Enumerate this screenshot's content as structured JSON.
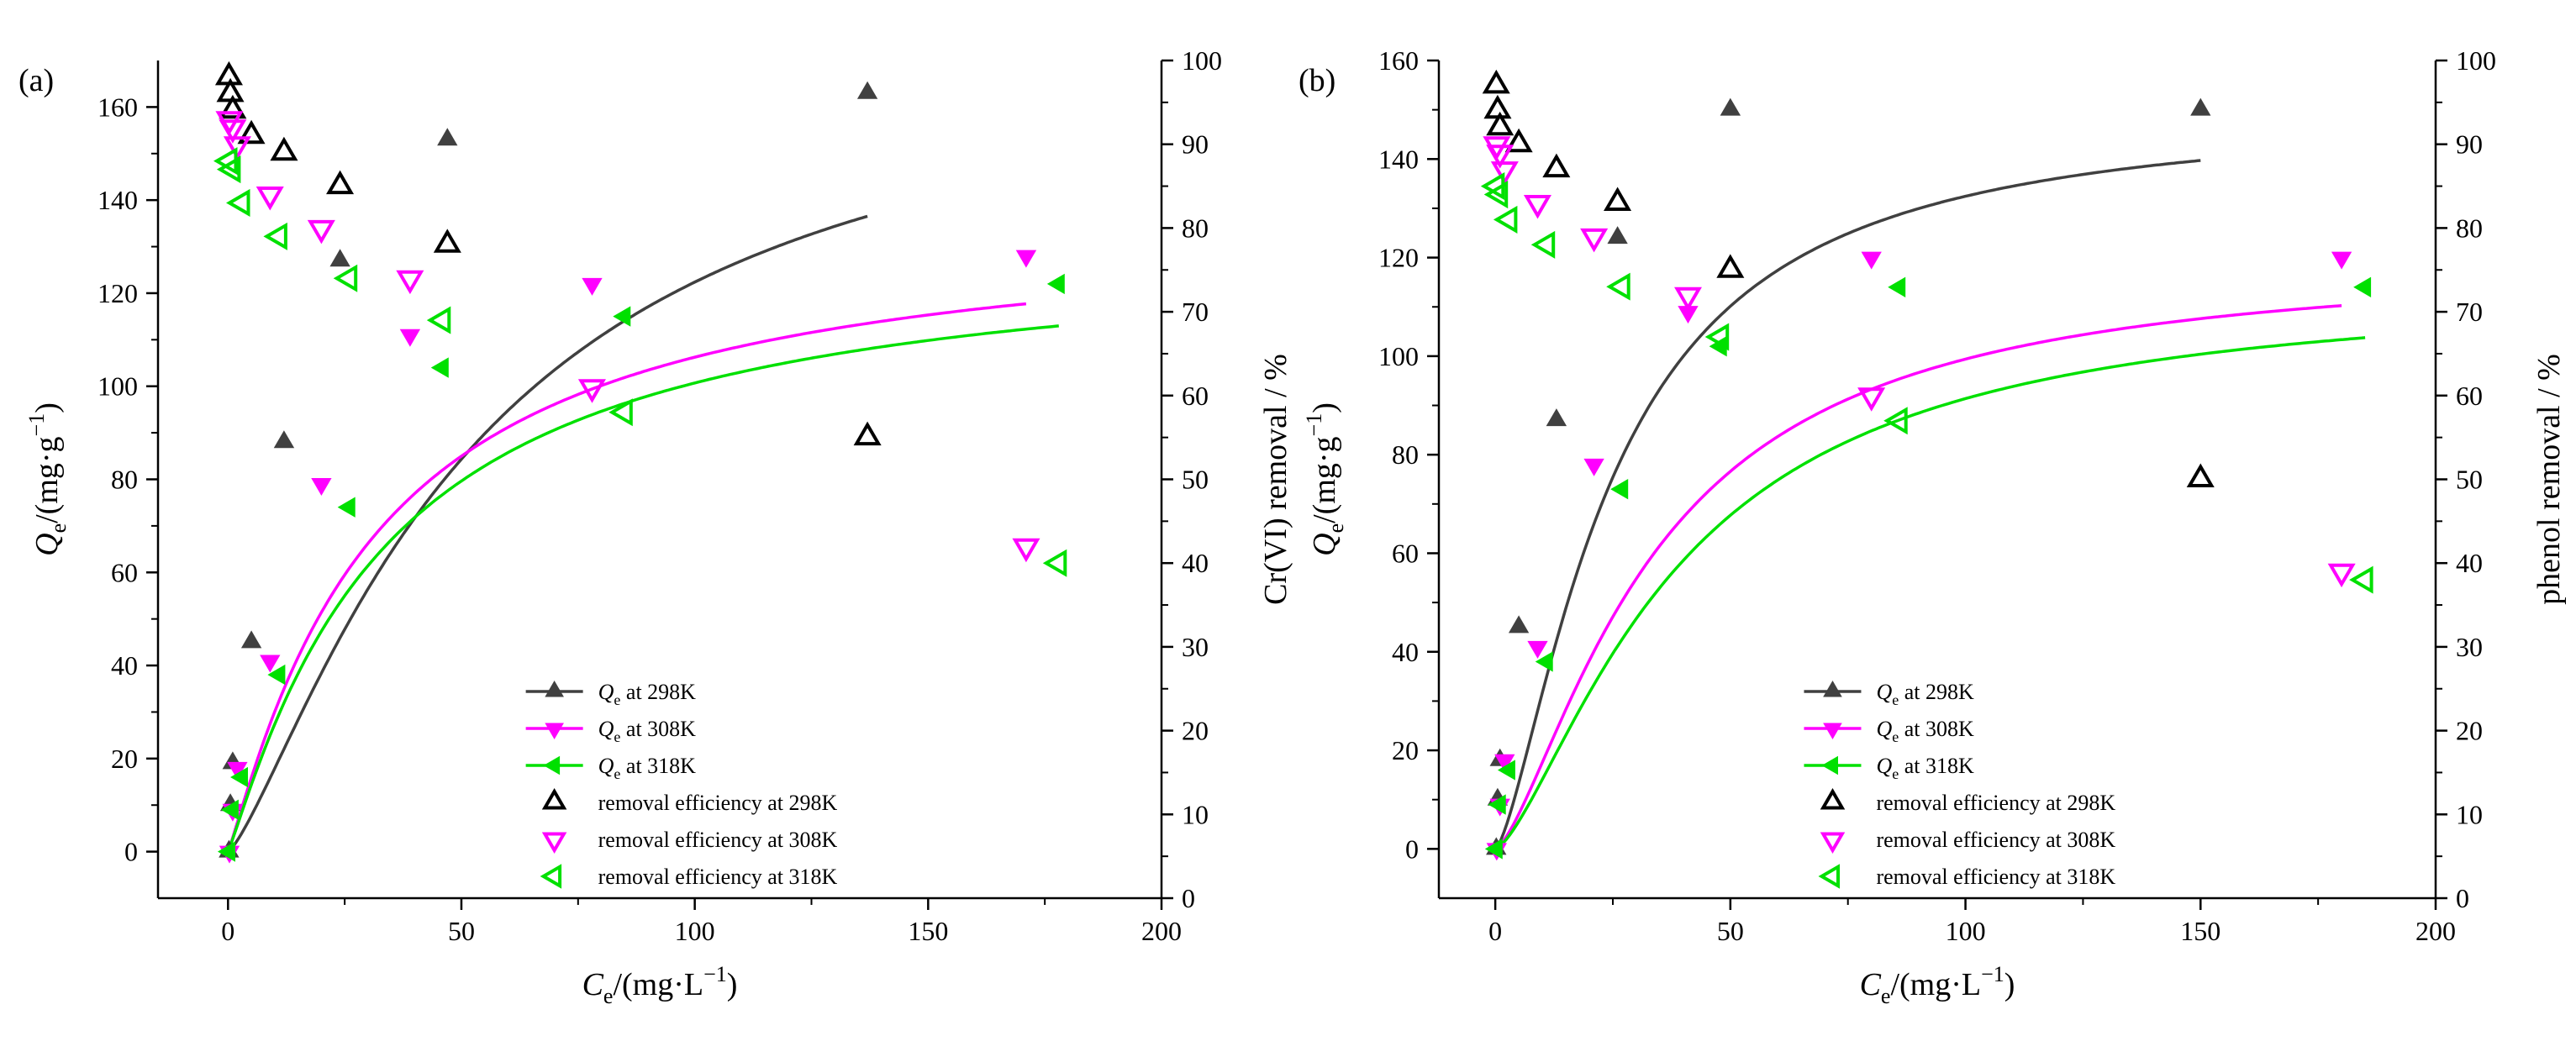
{
  "chart_data": [
    {
      "panel_label": "(a)",
      "type": "scatter",
      "xlabel": {
        "main": "C",
        "sub": "e",
        "unit_pre": "/(mg·L",
        "sup": "−1",
        "unit_post": ")"
      },
      "ylabel_left": {
        "main": "Q",
        "sub": "e",
        "unit_pre": "/(mg·g",
        "sup": "−1",
        "unit_post": ")"
      },
      "ylabel_right": "Cr(VI) removal / %",
      "xlim": [
        -15,
        200
      ],
      "ylim_left": [
        -10,
        170
      ],
      "ylim_right": [
        0,
        100
      ],
      "xticks": [
        0,
        50,
        100,
        150,
        200
      ],
      "yticks_left": [
        0,
        20,
        40,
        60,
        80,
        100,
        120,
        140,
        160
      ],
      "yticks_right": [
        0,
        10,
        20,
        30,
        40,
        50,
        60,
        70,
        80,
        90,
        100
      ],
      "legend_position": "bottom-center",
      "series": [
        {
          "name_main": "Q",
          "name_sub": "e",
          "name_rest": " at 298K",
          "axis": "left",
          "marker": "triangle-up",
          "filled": true,
          "color": "#404040",
          "line_color": "#404040",
          "x": [
            0.2,
            0.5,
            1,
            5,
            12,
            24,
            47,
            137
          ],
          "y": [
            0,
            10,
            19,
            45,
            88,
            127,
            153,
            163
          ],
          "fit": {
            "qmax": 177,
            "k": 0.0186,
            "n": 1.3,
            "xmax": 137
          }
        },
        {
          "name_main": "Q",
          "name_sub": "e",
          "name_rest": " at 308K",
          "axis": "left",
          "marker": "triangle-down",
          "filled": true,
          "color": "#ff00ff",
          "line_color": "#ff00ff",
          "x": [
            0.3,
            1,
            2,
            9,
            20,
            39,
            78,
            171
          ],
          "y": [
            0,
            9,
            18,
            41,
            79,
            111,
            122,
            128
          ],
          "fit": {
            "qmax": 136,
            "k": 0.0318,
            "n": 1.1,
            "xmax": 171
          }
        },
        {
          "name_main": "Q",
          "name_sub": "e",
          "name_rest": " at 318K",
          "axis": "left",
          "marker": "triangle-left",
          "filled": true,
          "color": "#00e000",
          "line_color": "#00e000",
          "x": [
            0.3,
            1,
            3,
            11,
            26,
            46,
            85,
            178
          ],
          "y": [
            0,
            9,
            16,
            38,
            74,
            104,
            115,
            122
          ],
          "fit": {
            "qmax": 131,
            "k": 0.0298,
            "n": 1.1,
            "xmax": 178
          }
        },
        {
          "name": "removal efficiency at 298K",
          "axis": "right",
          "marker": "triangle-up",
          "filled": false,
          "color": "#000000",
          "x": [
            0.2,
            0.5,
            1,
            5,
            12,
            24,
            47,
            137
          ],
          "y": [
            98,
            96,
            94,
            91,
            89,
            85,
            78,
            55
          ]
        },
        {
          "name": "removal efficiency at 308K",
          "axis": "right",
          "marker": "triangle-down",
          "filled": false,
          "color": "#ff00ff",
          "x": [
            0.3,
            1,
            2,
            9,
            20,
            39,
            78,
            171
          ],
          "y": [
            93,
            92,
            90,
            84,
            80,
            74,
            61,
            42
          ]
        },
        {
          "name": "removal efficiency at 318K",
          "axis": "right",
          "marker": "triangle-left",
          "filled": false,
          "color": "#00e000",
          "x": [
            0.3,
            1,
            3,
            11,
            26,
            46,
            85,
            178
          ],
          "y": [
            88,
            87,
            83,
            79,
            74,
            69,
            58,
            40
          ]
        }
      ]
    },
    {
      "panel_label": "(b)",
      "type": "scatter",
      "xlabel": {
        "main": "C",
        "sub": "e",
        "unit_pre": "/(mg·L",
        "sup": "−1",
        "unit_post": ")"
      },
      "ylabel_left": {
        "main": "Q",
        "sub": "e",
        "unit_pre": "/(mg·g",
        "sup": "−1",
        "unit_post": ")"
      },
      "ylabel_right": "phenol removal / %",
      "xlim": [
        -12,
        200
      ],
      "ylim_left": [
        -10,
        160
      ],
      "ylim_right": [
        0,
        100
      ],
      "xticks": [
        0,
        50,
        100,
        150,
        200
      ],
      "yticks_left": [
        0,
        20,
        40,
        60,
        80,
        100,
        120,
        140,
        160
      ],
      "yticks_right": [
        0,
        10,
        20,
        30,
        40,
        50,
        60,
        70,
        80,
        90,
        100
      ],
      "legend_position": "bottom-center",
      "series": [
        {
          "name_main": "Q",
          "name_sub": "e",
          "name_rest": " at 298K",
          "axis": "left",
          "marker": "triangle-up",
          "filled": true,
          "color": "#404040",
          "line_color": "#404040",
          "x": [
            0.2,
            0.5,
            1,
            5,
            13,
            26,
            50,
            150
          ],
          "y": [
            0,
            10,
            18,
            45,
            87,
            124,
            150,
            150
          ],
          "fit": {
            "qmax": 150,
            "k": 0.0403,
            "n": 1.45,
            "xmax": 150
          }
        },
        {
          "name_main": "Q",
          "name_sub": "e",
          "name_rest": " at 308K",
          "axis": "left",
          "marker": "triangle-down",
          "filled": true,
          "color": "#ff00ff",
          "line_color": "#ff00ff",
          "x": [
            0.3,
            1,
            2,
            9,
            21,
            41,
            80,
            180
          ],
          "y": [
            0,
            9,
            18,
            41,
            78,
            109,
            120,
            120
          ],
          "fit": {
            "qmax": 120,
            "k": 0.0296,
            "n": 1.45,
            "xmax": 180
          }
        },
        {
          "name_main": "Q",
          "name_sub": "e",
          "name_rest": " at 318K",
          "axis": "left",
          "marker": "triangle-left",
          "filled": true,
          "color": "#00e000",
          "line_color": "#00e000",
          "x": [
            0.3,
            1,
            3,
            11,
            27,
            48,
            86,
            185
          ],
          "y": [
            0,
            9,
            16,
            38,
            73,
            102,
            114,
            114
          ],
          "fit": {
            "qmax": 114.5,
            "k": 0.0258,
            "n": 1.45,
            "xmax": 185
          }
        },
        {
          "name": "removal efficiency at 298K",
          "axis": "right",
          "marker": "triangle-up",
          "filled": false,
          "color": "#000000",
          "x": [
            0.2,
            0.5,
            1,
            5,
            13,
            26,
            50,
            150
          ],
          "y": [
            97,
            94,
            92,
            90,
            87,
            83,
            75,
            50
          ]
        },
        {
          "name": "removal efficiency at 308K",
          "axis": "right",
          "marker": "triangle-down",
          "filled": false,
          "color": "#ff00ff",
          "x": [
            0.3,
            1,
            2,
            9,
            21,
            41,
            80,
            180
          ],
          "y": [
            90,
            89,
            87,
            83,
            79,
            72,
            60,
            39
          ]
        },
        {
          "name": "removal efficiency at 318K",
          "axis": "right",
          "marker": "triangle-left",
          "filled": false,
          "color": "#00e000",
          "x": [
            0.3,
            1,
            3,
            11,
            27,
            48,
            86,
            185
          ],
          "y": [
            85,
            84,
            81,
            78,
            73,
            67,
            57,
            38
          ]
        }
      ]
    }
  ]
}
